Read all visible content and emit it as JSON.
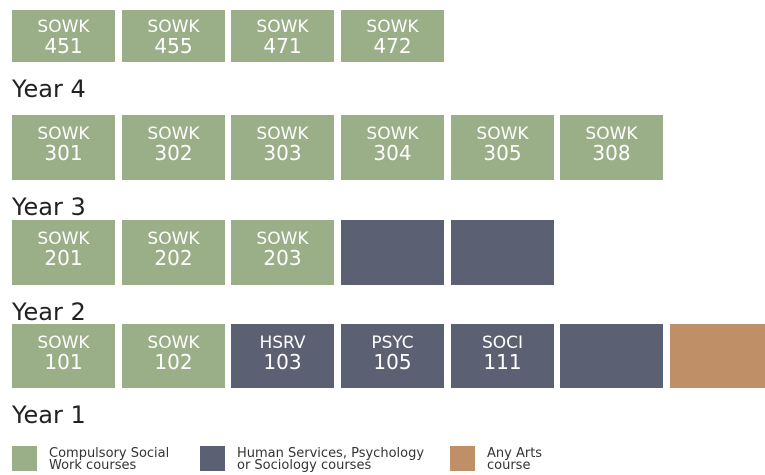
{
  "rows": [
    {
      "label": "Year 4",
      "courses": [
        {
          "subject": "SOWK",
          "number": "451",
          "color": "#9aae88"
        },
        {
          "subject": "SOWK",
          "number": "455",
          "color": "#9aae88"
        },
        {
          "subject": "SOWK",
          "number": "471",
          "color": "#9aae88"
        },
        {
          "subject": "SOWK",
          "number": "472",
          "color": "#9aae88"
        }
      ]
    },
    {
      "label": "Year 3",
      "courses": [
        {
          "subject": "SOWK",
          "number": "301",
          "color": "#9aae88"
        },
        {
          "subject": "SOWK",
          "number": "302",
          "color": "#9aae88"
        },
        {
          "subject": "SOWK",
          "number": "303",
          "color": "#9aae88"
        },
        {
          "subject": "SOWK",
          "number": "304",
          "color": "#9aae88"
        },
        {
          "subject": "SOWK",
          "number": "305",
          "color": "#9aae88"
        },
        {
          "subject": "SOWK",
          "number": "308",
          "color": "#9aae88"
        }
      ]
    },
    {
      "label": "Year 2",
      "courses": [
        {
          "subject": "SOWK",
          "number": "201",
          "color": "#9aae88"
        },
        {
          "subject": "SOWK",
          "number": "202",
          "color": "#9aae88"
        },
        {
          "subject": "SOWK",
          "number": "203",
          "color": "#9aae88"
        },
        {
          "color": "#5b6072"
        },
        {
          "color": "#5b6072"
        }
      ]
    },
    {
      "label": "Year 1",
      "courses": [
        {
          "subject": "SOWK",
          "number": "101",
          "color": "#9aae88"
        },
        {
          "subject": "SOWK",
          "number": "102",
          "color": "#9aae88"
        },
        {
          "subject": "HSRV",
          "number": "103",
          "color": "#5b6072"
        },
        {
          "subject": "PSYC",
          "number": "105",
          "color": "#5b6072"
        },
        {
          "subject": "SOCI",
          "number": "111",
          "color": "#5b6072"
        },
        {
          "color": "#5b6072"
        },
        {
          "color": "#bf9068"
        }
      ]
    }
  ],
  "legend": [
    {
      "lines": [
        "Compulsory Social",
        "Work courses"
      ],
      "color": "#9aae88"
    },
    {
      "lines": [
        "Human Services, Psychology",
        "or Sociology courses"
      ],
      "color": "#5b6072"
    },
    {
      "lines": [
        "Any Arts",
        "course"
      ],
      "color": "#bf9068"
    }
  ]
}
